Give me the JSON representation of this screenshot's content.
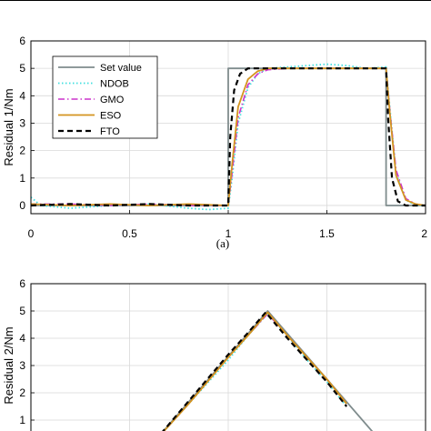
{
  "chart_data": [
    {
      "type": "line",
      "panel_label": "(a)",
      "ylabel": "Residual 1/Nm",
      "xlim": [
        0,
        2
      ],
      "ylim": [
        -0.3,
        6
      ],
      "xticks": [
        0,
        0.5,
        1,
        1.5,
        2
      ],
      "xtick_labels": [
        "0",
        "0.5",
        "1",
        "1.5",
        "2"
      ],
      "yticks": [
        0,
        1,
        2,
        3,
        4,
        5,
        6
      ],
      "ytick_labels": [
        "0",
        "1",
        "2",
        "3",
        "4",
        "5",
        "6"
      ],
      "grid": true,
      "legend_position": "top-left",
      "series": [
        {
          "name": "Set value",
          "color": "#7f8c8d",
          "style": "solid",
          "x": [
            0,
            1.0,
            1.0,
            1.8,
            1.8,
            2.0
          ],
          "y": [
            0,
            0,
            5,
            5,
            0,
            0
          ]
        },
        {
          "name": "NDOB",
          "color": "#40e0e0",
          "style": "dotted",
          "x": [
            0,
            0.05,
            0.2,
            0.4,
            0.6,
            0.8,
            0.9,
            1.0,
            1.02,
            1.05,
            1.1,
            1.15,
            1.2,
            1.3,
            1.4,
            1.5,
            1.6,
            1.7,
            1.8,
            1.82,
            1.85,
            1.9,
            1.95,
            2.0
          ],
          "y": [
            0.3,
            0.0,
            -0.1,
            0.0,
            0.05,
            -0.1,
            -0.15,
            -0.1,
            1.0,
            3.0,
            4.3,
            4.8,
            5.0,
            5.05,
            5.1,
            5.15,
            5.1,
            5.0,
            5.05,
            3.5,
            1.2,
            0.2,
            0.0,
            0.0
          ]
        },
        {
          "name": "GMO",
          "color": "#cc33cc",
          "style": "dashdot",
          "x": [
            0,
            0.2,
            0.4,
            0.6,
            0.8,
            1.0,
            1.02,
            1.05,
            1.1,
            1.15,
            1.2,
            1.3,
            1.5,
            1.7,
            1.8,
            1.82,
            1.85,
            1.9,
            1.95,
            2.0
          ],
          "y": [
            0.05,
            0.05,
            0.0,
            0.05,
            0.0,
            0.0,
            1.2,
            3.2,
            4.4,
            4.8,
            4.95,
            5.0,
            5.0,
            5.0,
            5.0,
            3.4,
            1.3,
            0.25,
            0.05,
            0.0
          ]
        },
        {
          "name": "ESO",
          "color": "#d4941f",
          "style": "solid",
          "x": [
            0,
            0.2,
            0.4,
            0.6,
            0.8,
            1.0,
            1.02,
            1.05,
            1.1,
            1.15,
            1.2,
            1.3,
            1.5,
            1.7,
            1.8,
            1.82,
            1.85,
            1.9,
            1.95,
            2.0
          ],
          "y": [
            0.05,
            0.0,
            0.05,
            0.0,
            0.05,
            0.0,
            1.5,
            3.6,
            4.6,
            4.9,
            5.0,
            5.0,
            5.0,
            5.0,
            5.0,
            3.3,
            1.1,
            0.2,
            0.05,
            0.0
          ]
        },
        {
          "name": "FTO",
          "color": "#000000",
          "style": "dashed",
          "x": [
            0,
            0.2,
            0.4,
            0.6,
            0.8,
            1.0,
            1.01,
            1.03,
            1.06,
            1.1,
            1.2,
            1.4,
            1.6,
            1.8,
            1.81,
            1.83,
            1.86,
            1.9,
            2.0
          ],
          "y": [
            0.0,
            0.05,
            0.0,
            0.05,
            0.0,
            0.0,
            2.5,
            4.2,
            4.8,
            5.0,
            5.0,
            5.0,
            5.0,
            5.0,
            3.2,
            1.0,
            0.15,
            0.0,
            0.0
          ]
        }
      ]
    },
    {
      "type": "line",
      "ylabel": "Residual 2/Nm",
      "xlim": [
        0,
        2
      ],
      "ylim": [
        0,
        6
      ],
      "yticks": [
        1,
        2,
        3,
        4,
        5,
        6
      ],
      "ytick_labels": [
        "1",
        "2",
        "3",
        "4",
        "5",
        "6"
      ],
      "grid": true,
      "series": [
        {
          "name": "Set value",
          "color": "#7f8c8d",
          "style": "solid",
          "x": [
            0.6,
            1.2,
            1.8
          ],
          "y": [
            0,
            5,
            0
          ]
        },
        {
          "name": "NDOB",
          "color": "#40e0e0",
          "style": "dotted",
          "x": [
            0.6,
            0.8,
            1.0,
            1.1,
            1.2,
            1.3,
            1.4,
            1.5,
            1.6
          ],
          "y": [
            0.0,
            1.6,
            3.2,
            4.1,
            4.9,
            4.1,
            3.2,
            2.4,
            1.5
          ]
        },
        {
          "name": "GMO",
          "color": "#cc33cc",
          "style": "dashdot",
          "x": [
            0.6,
            0.8,
            1.0,
            1.1,
            1.2,
            1.3,
            1.4,
            1.5,
            1.6
          ],
          "y": [
            0.0,
            1.6,
            3.3,
            4.1,
            4.9,
            4.1,
            3.3,
            2.5,
            1.6
          ]
        },
        {
          "name": "ESO",
          "color": "#d4941f",
          "style": "solid",
          "x": [
            0.6,
            0.8,
            1.0,
            1.1,
            1.2,
            1.3,
            1.4,
            1.5,
            1.6
          ],
          "y": [
            0.0,
            1.6,
            3.3,
            4.1,
            4.95,
            4.1,
            3.3,
            2.5,
            1.6
          ]
        },
        {
          "name": "FTO",
          "color": "#000000",
          "style": "dashed",
          "x": [
            0.6,
            0.8,
            1.0,
            1.1,
            1.19,
            1.3,
            1.4,
            1.5,
            1.6
          ],
          "y": [
            0.0,
            1.7,
            3.4,
            4.2,
            4.95,
            4.0,
            3.2,
            2.4,
            1.5
          ]
        }
      ]
    }
  ]
}
